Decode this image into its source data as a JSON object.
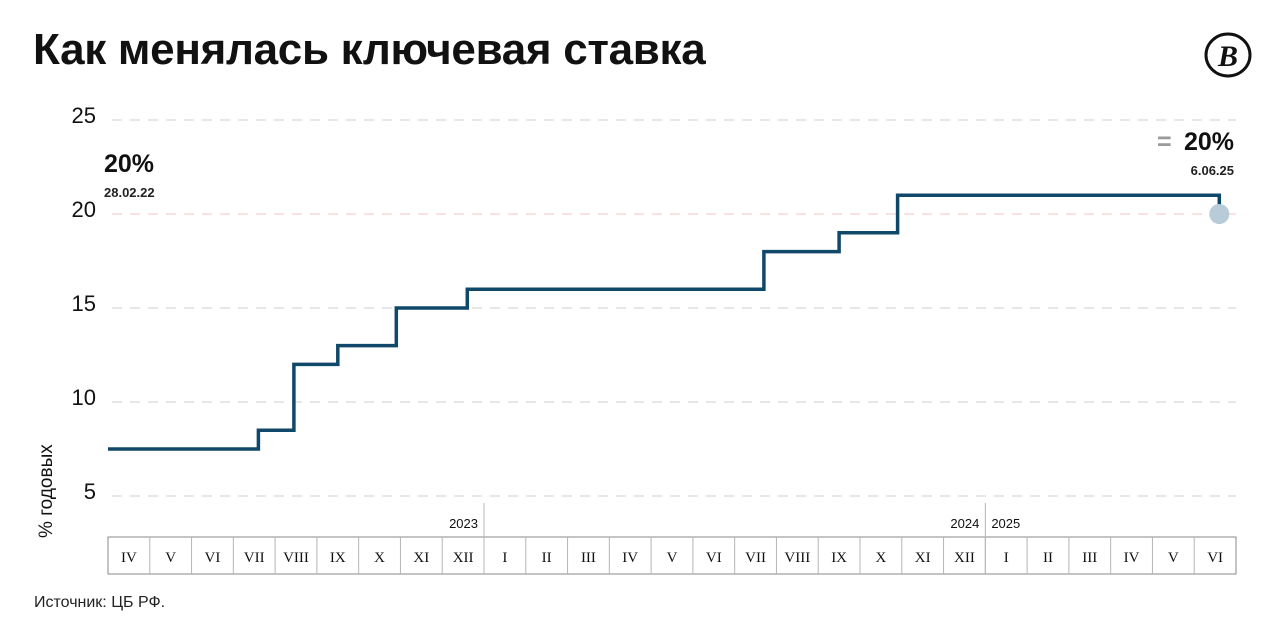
{
  "title": "Как менялась ключевая ставка",
  "source": "Источник: ЦБ РФ.",
  "logo": {
    "icon": "vedomosti-logo-icon",
    "glyph": "В"
  },
  "chart_data": {
    "type": "line",
    "step": true,
    "ylabel": "% годовых",
    "ylim": [
      5,
      25
    ],
    "yticks": [
      5,
      10,
      15,
      20,
      25
    ],
    "grid": true,
    "reference_line": {
      "value": 20,
      "color": "#f3c6c6"
    },
    "months": [
      "IV",
      "V",
      "VI",
      "VII",
      "VIII",
      "IX",
      "X",
      "XI",
      "XII",
      "I",
      "II",
      "III",
      "IV",
      "V",
      "VI",
      "VII",
      "VIII",
      "IX",
      "X",
      "XI",
      "XII",
      "I",
      "II",
      "III",
      "IV",
      "V",
      "VI"
    ],
    "year_labels": [
      {
        "label": "2023",
        "before_index": 9
      },
      {
        "label": "2024",
        "before_index": 21
      },
      {
        "label": "2025",
        "after_index": 21
      }
    ],
    "series": [
      {
        "color": "#10486a",
        "points": [
          {
            "x": 0,
            "y": 7.5
          },
          {
            "x": 3.6,
            "y": 7.5
          },
          {
            "x": 3.6,
            "y": 8.5
          },
          {
            "x": 4.45,
            "y": 8.5
          },
          {
            "x": 4.45,
            "y": 12
          },
          {
            "x": 5.5,
            "y": 12
          },
          {
            "x": 5.5,
            "y": 13
          },
          {
            "x": 6.9,
            "y": 13
          },
          {
            "x": 6.9,
            "y": 15
          },
          {
            "x": 8.6,
            "y": 15
          },
          {
            "x": 8.6,
            "y": 16
          },
          {
            "x": 15.7,
            "y": 16
          },
          {
            "x": 15.7,
            "y": 18
          },
          {
            "x": 17.5,
            "y": 18
          },
          {
            "x": 17.5,
            "y": 19
          },
          {
            "x": 18.9,
            "y": 19
          },
          {
            "x": 18.9,
            "y": 21
          },
          {
            "x": 26.6,
            "y": 21
          },
          {
            "x": 26.6,
            "y": 20
          }
        ]
      }
    ],
    "end_marker": {
      "x": 26.6,
      "y": 20,
      "color": "#b7cbd8"
    },
    "annotations": {
      "start": {
        "value": "20%",
        "date": "28.02.22"
      },
      "end": {
        "symbol": "=",
        "value": "20%",
        "date": "6.06.25"
      }
    }
  }
}
